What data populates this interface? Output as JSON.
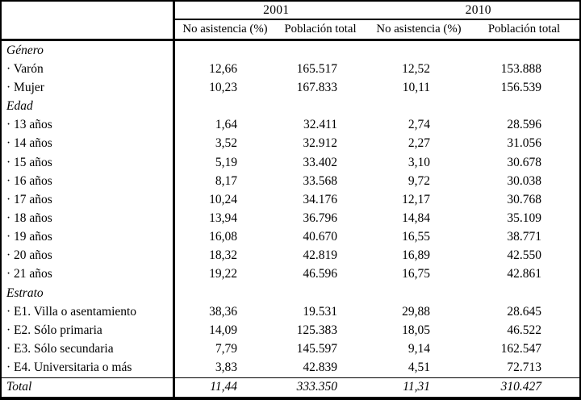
{
  "table": {
    "col_groups": [
      "2001",
      "2010"
    ],
    "sub_headers": [
      "No asistencia (%)",
      "Población total",
      "No asistencia (%)",
      "Población total"
    ],
    "rows": [
      {
        "label": "Género",
        "type": "section",
        "values": [
          "",
          "",
          "",
          ""
        ]
      },
      {
        "label": "· Varón",
        "type": "item",
        "values": [
          "12,66",
          "165.517",
          "12,52",
          "153.888"
        ]
      },
      {
        "label": "· Mujer",
        "type": "item",
        "values": [
          "10,23",
          "167.833",
          "10,11",
          "156.539"
        ]
      },
      {
        "label": "Edad",
        "type": "section",
        "values": [
          "",
          "",
          "",
          ""
        ]
      },
      {
        "label": "· 13 años",
        "type": "item",
        "values": [
          "1,64",
          "32.411",
          "2,74",
          "28.596"
        ]
      },
      {
        "label": "· 14 años",
        "type": "item",
        "values": [
          "3,52",
          "32.912",
          "2,27",
          "31.056"
        ]
      },
      {
        "label": "· 15 años",
        "type": "item",
        "values": [
          "5,19",
          "33.402",
          "3,10",
          "30.678"
        ]
      },
      {
        "label": "· 16 años",
        "type": "item",
        "values": [
          "8,17",
          "33.568",
          "9,72",
          "30.038"
        ]
      },
      {
        "label": "· 17 años",
        "type": "item",
        "values": [
          "10,24",
          "34.176",
          "12,17",
          "30.768"
        ]
      },
      {
        "label": "· 18 años",
        "type": "item",
        "values": [
          "13,94",
          "36.796",
          "14,84",
          "35.109"
        ]
      },
      {
        "label": "· 19 años",
        "type": "item",
        "values": [
          "16,08",
          "40.670",
          "16,55",
          "38.771"
        ]
      },
      {
        "label": "· 20 años",
        "type": "item",
        "values": [
          "18,32",
          "42.819",
          "16,89",
          "42.550"
        ]
      },
      {
        "label": "· 21 años",
        "type": "item",
        "values": [
          "19,22",
          "46.596",
          "16,75",
          "42.861"
        ]
      },
      {
        "label": "Estrato",
        "type": "section",
        "values": [
          "",
          "",
          "",
          ""
        ]
      },
      {
        "label": "· E1. Villa o asentamiento",
        "type": "item",
        "values": [
          "38,36",
          "19.531",
          "29,88",
          "28.645"
        ]
      },
      {
        "label": "· E2. Sólo primaria",
        "type": "item",
        "values": [
          "14,09",
          "125.383",
          "18,05",
          "46.522"
        ]
      },
      {
        "label": "· E3. Sólo secundaria",
        "type": "item",
        "values": [
          "7,79",
          "145.597",
          "9,14",
          "162.547"
        ]
      },
      {
        "label": "· E4. Universitaria o más",
        "type": "item",
        "values": [
          "3,83",
          "42.839",
          "4,51",
          "72.713"
        ]
      },
      {
        "label": "Total",
        "type": "total",
        "values": [
          "11,44",
          "333.350",
          "11,31",
          "310.427"
        ]
      }
    ]
  }
}
